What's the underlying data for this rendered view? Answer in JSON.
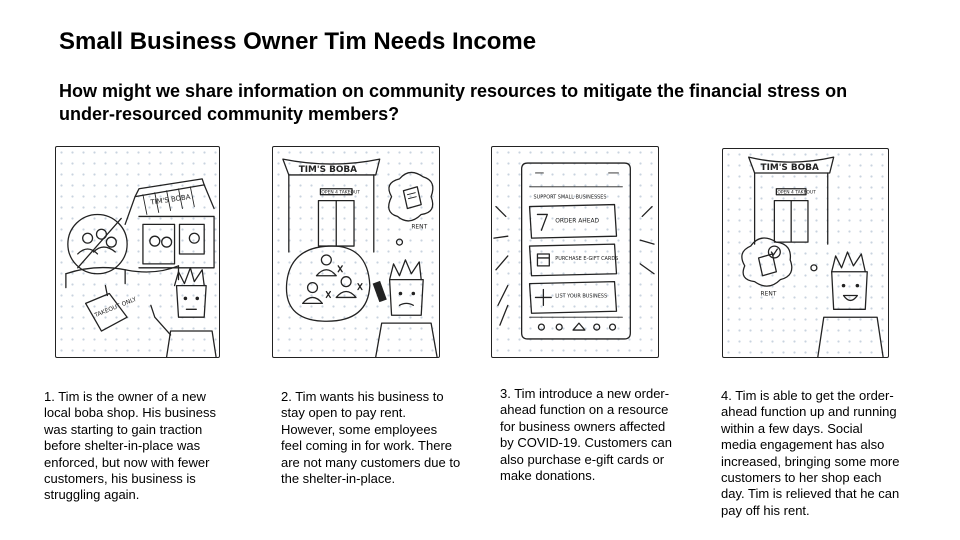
{
  "title": "Small Business Owner Tim Needs Income",
  "question": "How might we share information on community resources to mitigate the financial stress on under-resourced community members?",
  "panels": [
    {
      "sketch_labels": {
        "shop_sign": "TIM'S BOBA",
        "sign": "TAKEOUT ONLY"
      },
      "caption": "1. Tim is the owner of a new local boba shop. His business was starting to gain traction before shelter-in-place was enforced, but now with fewer customers, his business is struggling again."
    },
    {
      "sketch_labels": {
        "shop_sign": "TIM'S BOBA",
        "door_sign": "OPEN 4 TAKEOUT",
        "bill": "RENT"
      },
      "caption": "2. Tim wants his business to stay open to pay rent. However, some employees feel coming in for work. There are not many customers due to the shelter-in-place."
    },
    {
      "sketch_labels": {
        "header": "SUPPORT SMALL BUSINESSES",
        "option1": "ORDER AHEAD",
        "option2": "PURCHASE E-GIFT CARDS",
        "option3": "LIST YOUR BUSINESS"
      },
      "caption": "3. Tim introduce a new order-ahead function on a resource for business owners affected by COVID-19. Customers can also purchase e-gift cards or make donations."
    },
    {
      "sketch_labels": {
        "shop_sign": "TIM'S BOBA",
        "door_sign": "OPEN 4 TAKEOUT",
        "bill": "RENT"
      },
      "caption": "4. Tim is able to get the order-ahead function up and running within a few days. Social media engagement has also increased, bringing some more customers to her shop each day. Tim is relieved that he can pay off his rent."
    }
  ]
}
